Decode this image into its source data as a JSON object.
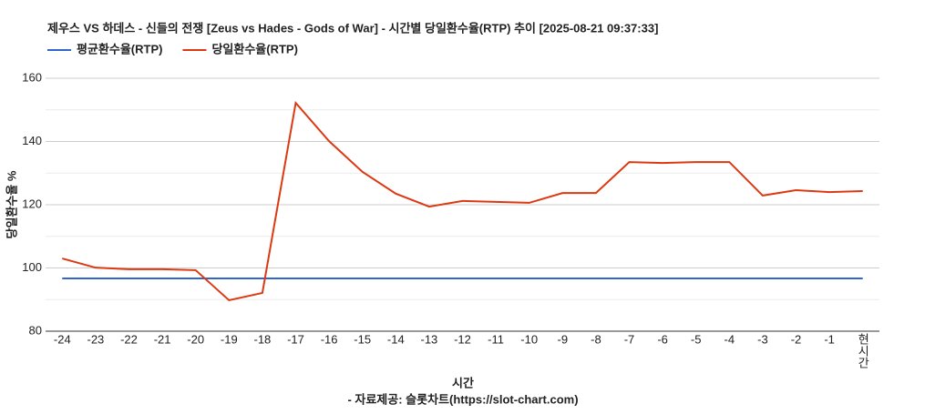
{
  "chart_data": {
    "type": "line",
    "title": "제우스 VS 하데스 - 신들의 전쟁 [Zeus vs Hades - Gods of War] - 시간별 당일환수율(RTP) 추이 [2025-08-21 09:37:33]",
    "x_label": "시간",
    "y_label": "당일환수율 %",
    "source": "- 자료제공: 슬롯차트(https://slot-chart.com)",
    "categories": [
      "-24",
      "-23",
      "-22",
      "-21",
      "-20",
      "-19",
      "-18",
      "-17",
      "-16",
      "-15",
      "-14",
      "-13",
      "-12",
      "-11",
      "-10",
      "-9",
      "-8",
      "-7",
      "-6",
      "-5",
      "-4",
      "-3",
      "-2",
      "-1",
      "현시간"
    ],
    "series": [
      {
        "name": "평균환수율(RTP)",
        "color": "#3366cc",
        "values": [
          96.7,
          96.7,
          96.7,
          96.7,
          96.7,
          96.7,
          96.7,
          96.7,
          96.7,
          96.7,
          96.7,
          96.7,
          96.7,
          96.7,
          96.7,
          96.7,
          96.7,
          96.7,
          96.7,
          96.7,
          96.7,
          96.7,
          96.7,
          96.7,
          96.7
        ]
      },
      {
        "name": "당일환수율(RTP)",
        "color": "#dc3912",
        "values": [
          103.0,
          100.1,
          99.6,
          99.6,
          99.3,
          89.8,
          92.1,
          152.2,
          140.1,
          130.4,
          123.5,
          119.4,
          121.2,
          120.9,
          120.6,
          123.7,
          123.7,
          133.5,
          133.2,
          133.5,
          133.5,
          122.9,
          124.6,
          124.0,
          124.3
        ]
      }
    ],
    "ylim": [
      80,
      160
    ],
    "yticks": [
      80,
      100,
      120,
      140,
      160
    ],
    "yminor": [
      90,
      110,
      130,
      150
    ],
    "grid": true,
    "legend": "top-left"
  }
}
